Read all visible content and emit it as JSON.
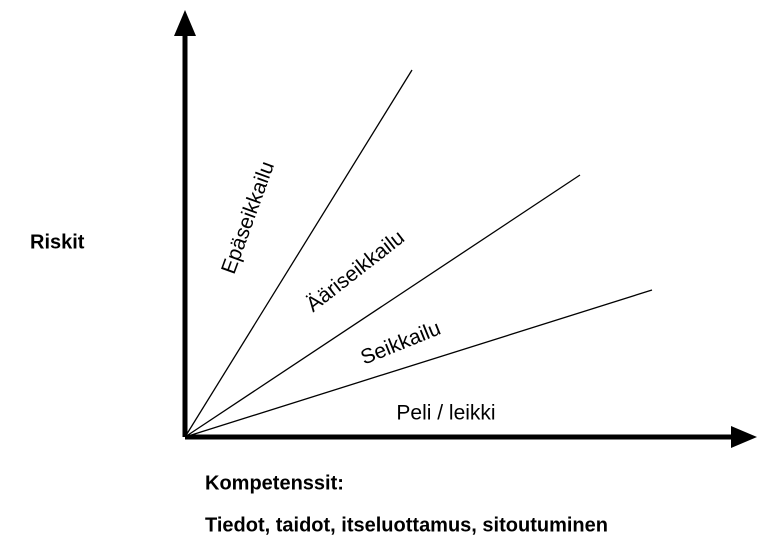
{
  "axes": {
    "y_label": "Riskit",
    "x_label": "Kompetenssit:",
    "x_sublabel": "Tiedot, taidot, itseluottamus, sitoutuminen"
  },
  "regions": [
    "Epäseikkailu",
    "Ääriseikkailu",
    "Seikkailu",
    "Peli / leikki"
  ]
}
